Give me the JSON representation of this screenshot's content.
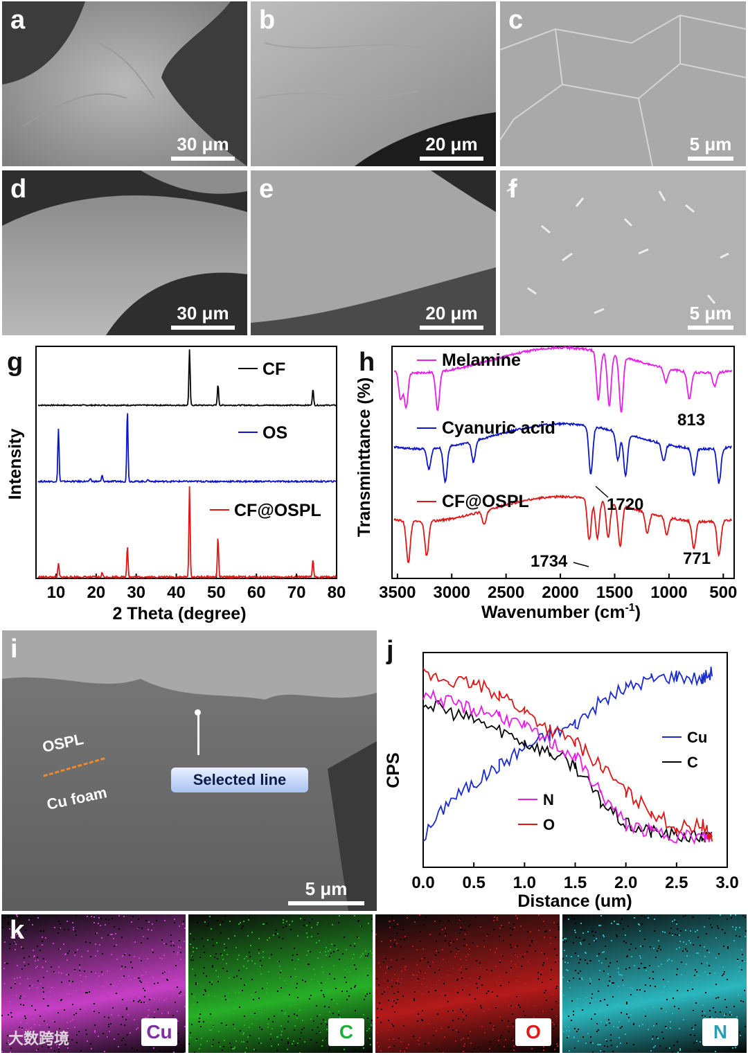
{
  "panels": {
    "a": {
      "label": "a",
      "scale": "30 μm"
    },
    "b": {
      "label": "b",
      "scale": "20 μm"
    },
    "c": {
      "label": "c",
      "scale": "5 μm"
    },
    "d": {
      "label": "d",
      "scale": "30 μm"
    },
    "e": {
      "label": "e",
      "scale": "20 μm"
    },
    "f": {
      "label": "f",
      "scale": "5 μm"
    },
    "g": {
      "label": "g"
    },
    "h": {
      "label": "h"
    },
    "i": {
      "label": "i",
      "scale": "5 μm",
      "ospl": "OSPL",
      "cu_foam": "Cu foam",
      "selected_line": "Selected line"
    },
    "j": {
      "label": "j"
    },
    "k": {
      "label": "k"
    }
  },
  "emap": {
    "items": [
      {
        "label": "Cu",
        "color": "#7b2fa3",
        "bg": "#c63fc6"
      },
      {
        "label": "C",
        "color": "#1fae3a",
        "bg": "#27b027"
      },
      {
        "label": "O",
        "color": "#e01a1a",
        "bg": "#b41a1a"
      },
      {
        "label": "N",
        "color": "#2a9fb3",
        "bg": "#2bb7bf"
      }
    ]
  },
  "watermark": "大数跨境",
  "chart_data": [
    {
      "id": "g",
      "type": "line",
      "title": "",
      "xlabel": "2 Theta (degree)",
      "ylabel": "Intensity",
      "xlim": [
        5,
        80
      ],
      "xticks": [
        10,
        20,
        30,
        40,
        50,
        60,
        70,
        80
      ],
      "series": [
        {
          "name": "CF",
          "color": "#000000",
          "peaks": [
            [
              43.3,
              1.0
            ],
            [
              50.4,
              0.38
            ],
            [
              74.1,
              0.3
            ]
          ]
        },
        {
          "name": "OS",
          "color": "#0a14c8",
          "peaks": [
            [
              10.6,
              0.7
            ],
            [
              18.6,
              0.04
            ],
            [
              21.5,
              0.08
            ],
            [
              27.8,
              0.95
            ],
            [
              33.0,
              0.03
            ]
          ]
        },
        {
          "name": "CF@OSPL",
          "color": "#e01515",
          "peaks": [
            [
              10.6,
              0.15
            ],
            [
              21.5,
              0.05
            ],
            [
              27.8,
              0.35
            ],
            [
              43.3,
              1.0
            ],
            [
              50.4,
              0.45
            ],
            [
              74.1,
              0.2
            ]
          ]
        }
      ]
    },
    {
      "id": "h",
      "type": "line",
      "title": "",
      "xlabel": "Wavenumber (cm",
      "xlabel_sup": "-1",
      "xlabel_end": ")",
      "ylabel": "Transminttance (%)",
      "xlim": [
        3550,
        400
      ],
      "xticks": [
        3500,
        3000,
        2500,
        2000,
        1500,
        1000,
        500
      ],
      "series": [
        {
          "name": "Melamine",
          "color": "#e61ee6"
        },
        {
          "name": "Cyanuric acid",
          "color": "#0a14c8"
        },
        {
          "name": "CF@OSPL",
          "color": "#e01515"
        }
      ],
      "annotations": [
        "813",
        "1720",
        "1734",
        "771"
      ]
    },
    {
      "id": "j",
      "type": "line",
      "title": "",
      "xlabel": "Distance (um)",
      "ylabel": "CPS",
      "xlim": [
        0.0,
        3.0
      ],
      "xticks": [
        "0.0",
        "0.5",
        "1.0",
        "1.5",
        "2.0",
        "2.5",
        "3.0"
      ],
      "series": [
        {
          "name": "Cu",
          "color": "#1a2ad0",
          "x": [
            0.0,
            0.25,
            0.5,
            0.75,
            1.0,
            1.25,
            1.5,
            1.75,
            2.0,
            2.25,
            2.5,
            2.75,
            2.85
          ],
          "y": [
            0.05,
            0.25,
            0.35,
            0.45,
            0.55,
            0.62,
            0.68,
            0.8,
            0.88,
            0.93,
            0.95,
            0.93,
            0.97
          ]
        },
        {
          "name": "C",
          "color": "#000000",
          "x": [
            0.0,
            0.25,
            0.5,
            0.75,
            1.0,
            1.25,
            1.5,
            1.75,
            2.0,
            2.25,
            2.5,
            2.75,
            2.85
          ],
          "y": [
            0.8,
            0.75,
            0.7,
            0.65,
            0.58,
            0.52,
            0.45,
            0.25,
            0.12,
            0.08,
            0.06,
            0.05,
            0.05
          ]
        },
        {
          "name": "N",
          "color": "#e61ee6",
          "x": [
            0.0,
            0.25,
            0.5,
            0.75,
            1.0,
            1.25,
            1.5,
            1.75,
            2.0,
            2.25,
            2.5,
            2.75,
            2.85
          ],
          "y": [
            0.85,
            0.8,
            0.76,
            0.73,
            0.66,
            0.58,
            0.5,
            0.3,
            0.12,
            0.08,
            0.06,
            0.05,
            0.05
          ]
        },
        {
          "name": "O",
          "color": "#e01515",
          "x": [
            0.0,
            0.25,
            0.5,
            0.75,
            1.0,
            1.25,
            1.5,
            1.75,
            2.0,
            2.25,
            2.5,
            2.75,
            2.85
          ],
          "y": [
            0.95,
            0.92,
            0.9,
            0.85,
            0.75,
            0.65,
            0.58,
            0.45,
            0.3,
            0.2,
            0.1,
            0.12,
            0.05
          ]
        }
      ]
    }
  ]
}
